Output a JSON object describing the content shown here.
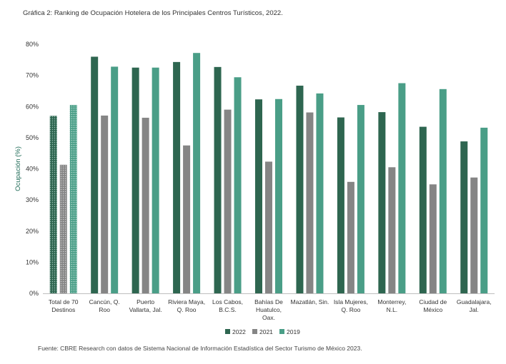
{
  "caption": "Gráfica 2: Ranking de Ocupación Hotelera de los Principales Centros Turísticos, 2022.",
  "source": "Fuente: CBRE Research con datos de Sistema Nacional de Información Estadística del Sector Turismo de México 2023.",
  "colors": {
    "s2022": "#2e6650",
    "s2021": "#858585",
    "s2019": "#4a9e87",
    "axis": "#bfbfbf",
    "ylabel": "#1f6b57"
  },
  "chart_data": {
    "type": "bar",
    "title": "Gráfica 2: Ranking de Ocupación Hotelera de los Principales Centros Turísticos, 2022.",
    "ylabel": "Ocupación (%)",
    "xlabel": "",
    "ylim": [
      0,
      80
    ],
    "yticks": [
      "0%",
      "10%",
      "20%",
      "30%",
      "40%",
      "50%",
      "60%",
      "70%",
      "80%"
    ],
    "grid": false,
    "legend_position": "bottom-center",
    "categories": [
      [
        "Total de 70",
        "Destinos"
      ],
      [
        "Cancún, Q.",
        "Roo"
      ],
      [
        "Puerto",
        "Vallarta, Jal."
      ],
      [
        "Riviera Maya,",
        "Q. Roo"
      ],
      [
        "Los Cabos,",
        "B.C.S."
      ],
      [
        "Bahías De",
        "Huatulco,",
        "Oax."
      ],
      [
        "Mazatlán, Sin."
      ],
      [
        "Isla Mujeres,",
        "Q. Roo"
      ],
      [
        "Monterrey,",
        "N.L."
      ],
      [
        "Ciudad de",
        "México"
      ],
      [
        "Guadalajara,",
        "Jal."
      ]
    ],
    "series": [
      {
        "name": "2022",
        "values": [
          57,
          76,
          72.5,
          74.3,
          72.7,
          62.3,
          66.7,
          56.5,
          58.2,
          53.5,
          48.8
        ]
      },
      {
        "name": "2021",
        "values": [
          41.3,
          57.1,
          56.4,
          47.5,
          59.0,
          42.3,
          58.1,
          35.8,
          40.5,
          35.0,
          37.2
        ]
      },
      {
        "name": "2019",
        "values": [
          60.5,
          72.8,
          72.5,
          77.2,
          69.4,
          62.4,
          64.2,
          60.5,
          67.5,
          65.6,
          53.2
        ]
      }
    ],
    "highlighted_category_pattern": "dotted"
  }
}
